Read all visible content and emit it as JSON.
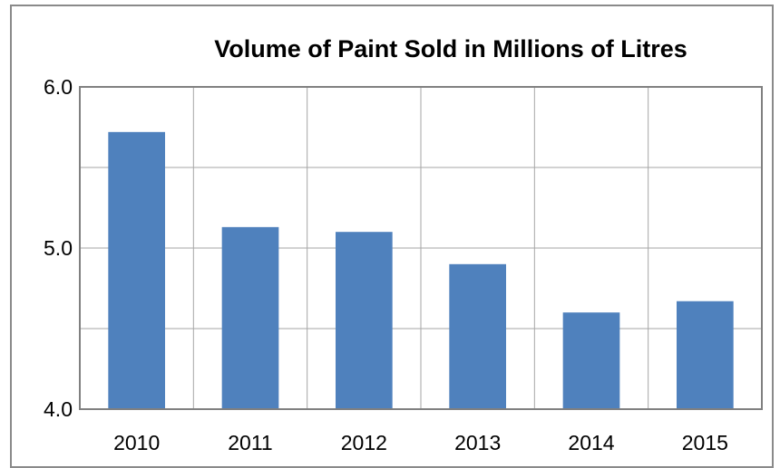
{
  "chart_data": {
    "type": "bar",
    "title": "Volume of Paint Sold in Millions of Litres",
    "xlabel": "",
    "ylabel": "",
    "categories": [
      "2010",
      "2011",
      "2012",
      "2013",
      "2014",
      "2015"
    ],
    "values": [
      5.72,
      5.13,
      5.1,
      4.9,
      4.6,
      4.67
    ],
    "ylim": [
      4.0,
      6.0
    ],
    "y_ticks": [
      "4.0",
      "5.0",
      "6.0"
    ],
    "y_minor_gridlines": [
      4.5,
      5.5
    ],
    "grid": true,
    "legend": "none",
    "bar_color": "#4F81BD",
    "grid_color": "#A6A6A6"
  }
}
